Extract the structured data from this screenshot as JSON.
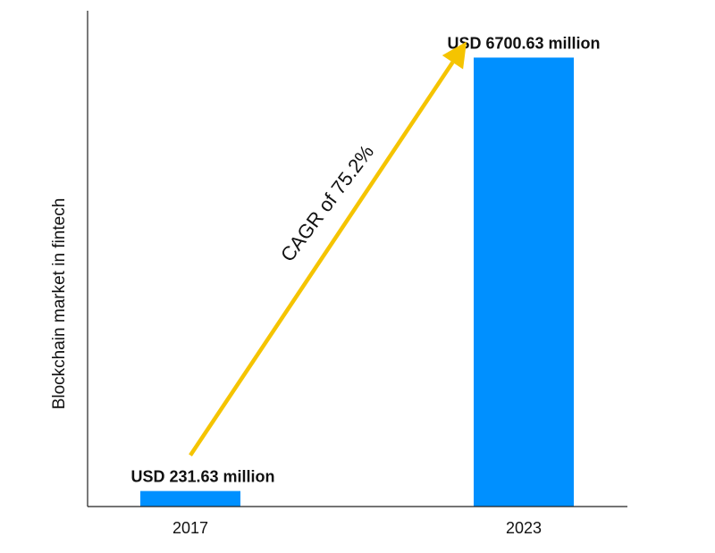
{
  "chart_data": {
    "type": "bar",
    "categories": [
      "2017",
      "2023"
    ],
    "values": [
      231.63,
      6700.63
    ],
    "data_labels": [
      "USD 231.63 million",
      "USD 6700.63 million"
    ],
    "ylabel": "Blockchain market in fintech",
    "xlabel": "",
    "ylim": [
      0,
      7400
    ],
    "grid": false,
    "legend": "none",
    "annotation": "CAGR of 75.2%",
    "colors": {
      "bar": "#0090FF",
      "arrow": "#F5C400",
      "axis": "#222222"
    }
  }
}
